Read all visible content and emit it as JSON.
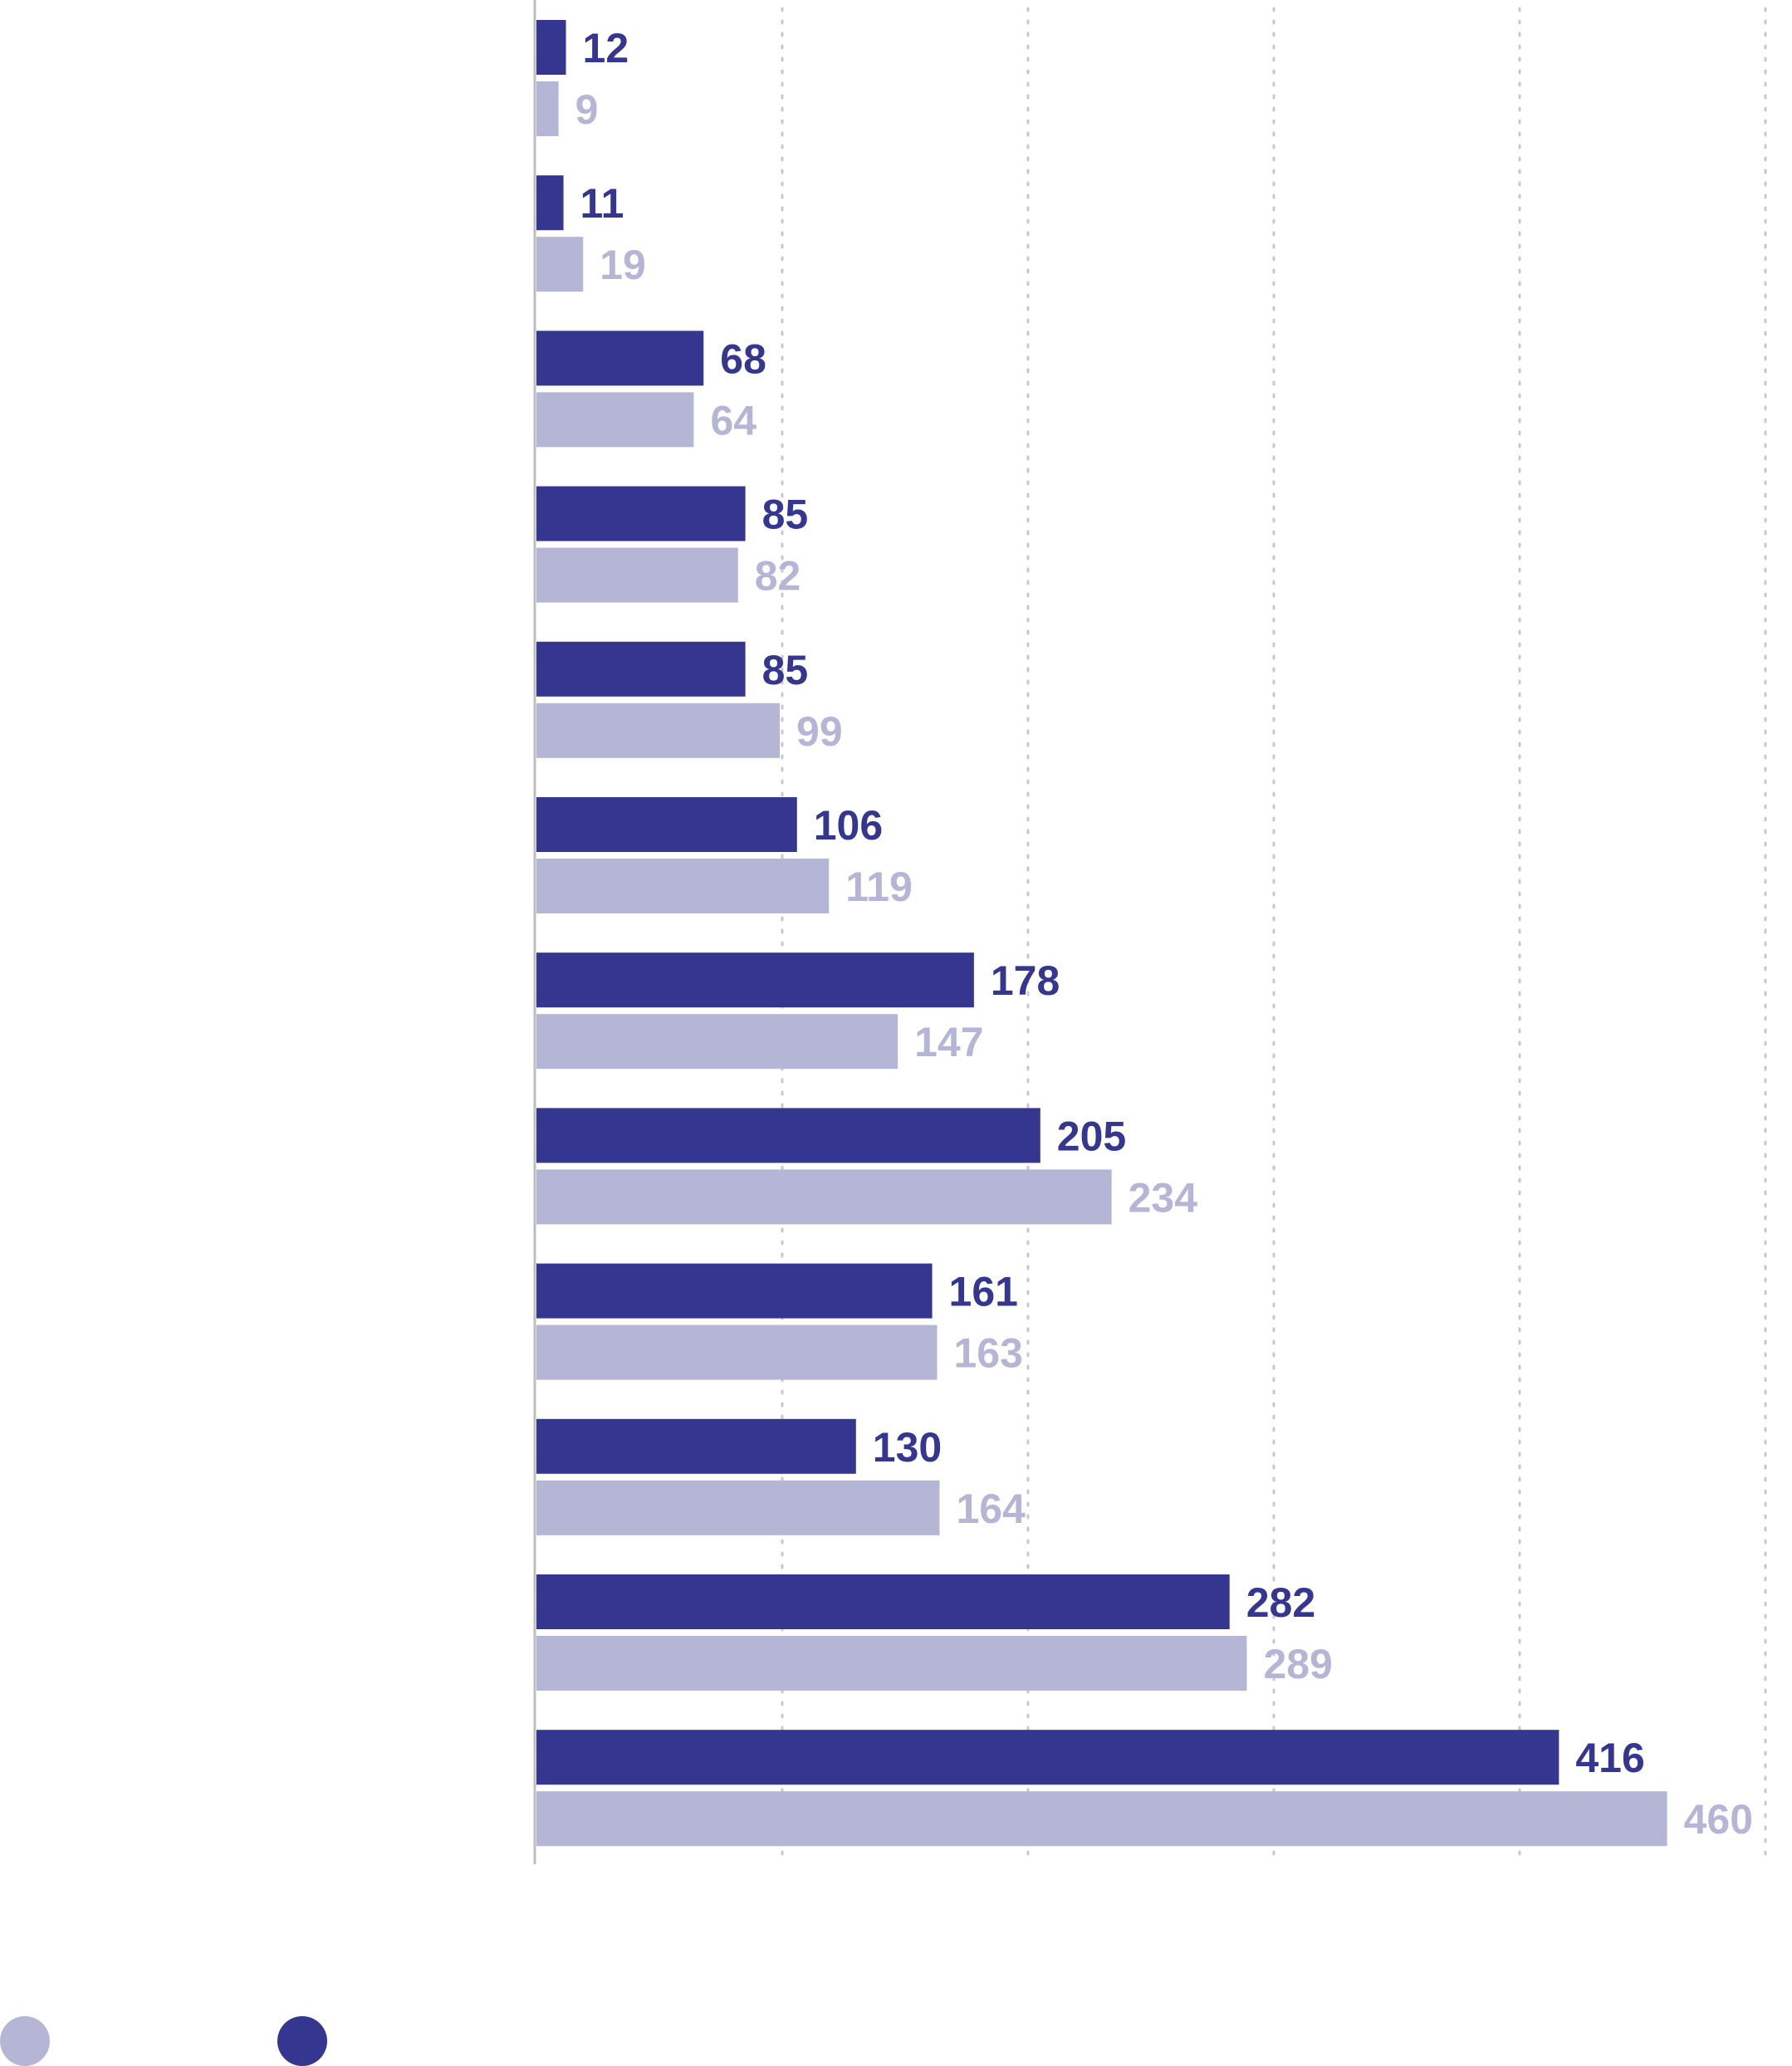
{
  "chart_data": {
    "type": "bar",
    "orientation": "horizontal",
    "categories": [
      "",
      "",
      "",
      "",
      "",
      "",
      "",
      "",
      "",
      "",
      "",
      ""
    ],
    "series": [
      {
        "values": [
          12,
          11,
          68,
          85,
          85,
          106,
          178,
          205,
          161,
          130,
          282,
          416
        ],
        "color": "#35368f"
      },
      {
        "values": [
          9,
          19,
          64,
          82,
          99,
          119,
          147,
          234,
          163,
          164,
          289,
          460
        ],
        "color": "#b5b6d6"
      }
    ],
    "xlim": [
      0,
      500
    ],
    "grid": true,
    "legend_position": "bottom-left",
    "title": "",
    "xlabel": "",
    "ylabel": ""
  },
  "legend": {
    "items": [
      {
        "color": "#b5b6d6"
      },
      {
        "color": "#35368f"
      }
    ]
  }
}
